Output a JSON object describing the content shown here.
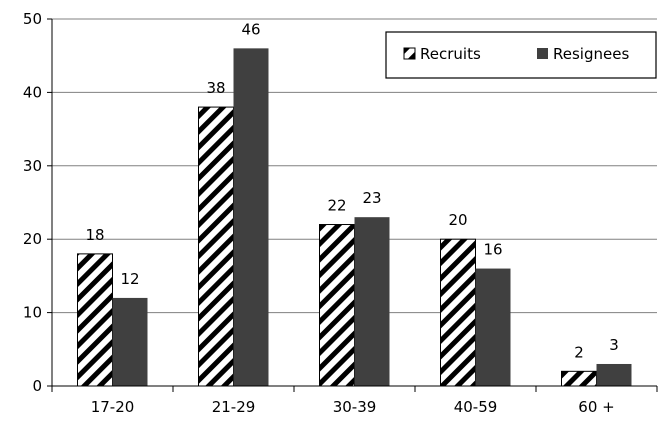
{
  "chart_data": {
    "type": "bar",
    "categories": [
      "17-20",
      "21-29",
      "30-39",
      "40-59",
      "60 +"
    ],
    "series": [
      {
        "name": "Recruits",
        "values": [
          18,
          38,
          22,
          20,
          2
        ],
        "pattern": "diagonal-hatch",
        "color": "#000000"
      },
      {
        "name": "Resignees",
        "values": [
          12,
          46,
          23,
          16,
          3
        ],
        "color": "#404040"
      }
    ],
    "data_labels": [
      [
        "18",
        "38",
        "22",
        "20",
        "2"
      ],
      [
        "12",
        "46",
        "23",
        "16",
        "3"
      ]
    ],
    "ylim": [
      0,
      50
    ],
    "yticks": [
      "0",
      "10",
      "20",
      "30",
      "40",
      "50"
    ],
    "title": "",
    "xlabel": "",
    "ylabel": "",
    "grid": true,
    "legend_position": "top-right"
  }
}
